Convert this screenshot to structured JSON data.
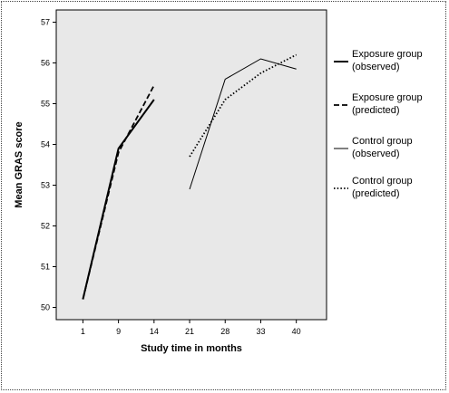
{
  "chart_data": {
    "type": "line",
    "xlabel": "Study time in months",
    "ylabel": "Mean GRAS score",
    "categories": [
      "1",
      "9",
      "14",
      "21",
      "28",
      "33",
      "40"
    ],
    "ylim": [
      49.7,
      57.3
    ],
    "yticks": [
      50,
      51,
      52,
      53,
      54,
      55,
      56,
      57
    ],
    "grid": false,
    "legend_placement": "right",
    "series": [
      {
        "name_lines": [
          "Exposure group",
          "(observed)"
        ],
        "style": "solid-thick",
        "color": "#000000",
        "points": [
          {
            "x": "1",
            "y": 50.2
          },
          {
            "x": "9",
            "y": 53.9
          },
          {
            "x": "14",
            "y": 55.1
          }
        ]
      },
      {
        "name_lines": [
          "Exposure group",
          "(predicted)"
        ],
        "style": "dashed",
        "color": "#000000",
        "points": [
          {
            "x": "1",
            "y": 50.2
          },
          {
            "x": "9",
            "y": 53.8
          },
          {
            "x": "14",
            "y": 55.45
          }
        ]
      },
      {
        "name_lines": [
          "Control group",
          "(observed)"
        ],
        "style": "solid-thin",
        "color": "#000000",
        "points": [
          {
            "x": "21",
            "y": 52.9
          },
          {
            "x": "28",
            "y": 55.6
          },
          {
            "x": "33",
            "y": 56.1
          },
          {
            "x": "40",
            "y": 55.85
          }
        ]
      },
      {
        "name_lines": [
          "Control group",
          "(predicted)"
        ],
        "style": "dotted",
        "color": "#000000",
        "points": [
          {
            "x": "21",
            "y": 53.7
          },
          {
            "x": "28",
            "y": 55.1
          },
          {
            "x": "33",
            "y": 55.75
          },
          {
            "x": "40",
            "y": 56.2
          }
        ]
      }
    ],
    "colors": {
      "plot_background": "#e8e8e8",
      "line": "#000000"
    }
  }
}
